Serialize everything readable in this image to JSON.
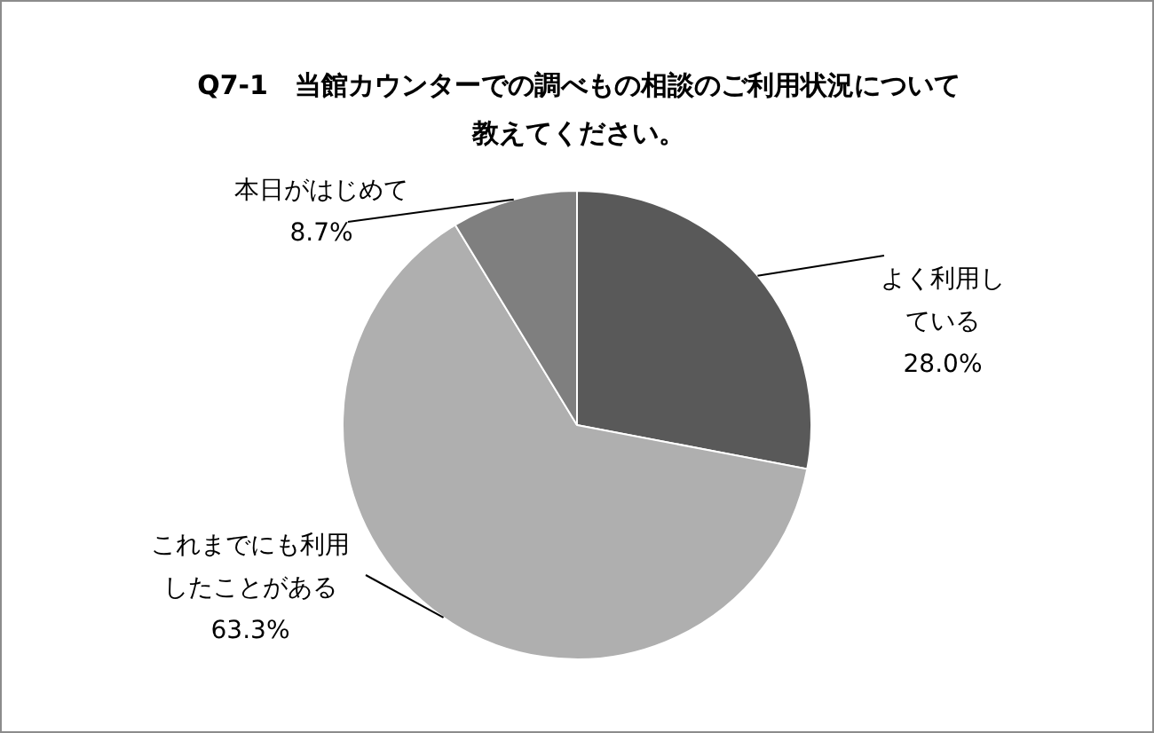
{
  "chart_data": {
    "type": "pie",
    "title": "Q7-1　当館カウンターでの調べもの相談のご利用状況について教えてください。",
    "categories": [
      "よく利用している",
      "これまでにも利用したことがある",
      "本日がはじめて"
    ],
    "values": [
      28.0,
      63.3,
      8.7
    ],
    "colors": [
      "#595959",
      "#afafaf",
      "#7f7f7f"
    ],
    "value_labels": [
      "28.0%",
      "63.3%",
      "8.7%"
    ],
    "legend": false
  }
}
